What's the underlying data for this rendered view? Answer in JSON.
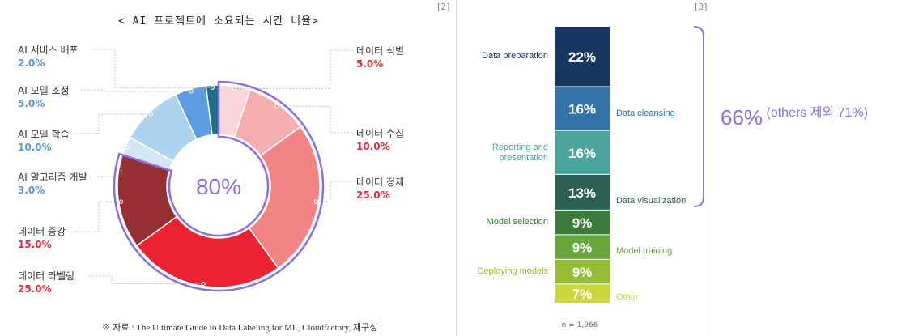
{
  "refs": {
    "left": "[2]",
    "right": "[3]"
  },
  "chart_data": [
    {
      "type": "pie",
      "title": "< AI 프로젝트에 소요되는 시간 비율>",
      "center_label": "80%",
      "slices": [
        {
          "name": "데이터 식별",
          "value": "5.0%",
          "v": 5,
          "color": "#fad5d8",
          "group": "red"
        },
        {
          "name": "데이터 수집",
          "value": "10.0%",
          "v": 10,
          "color": "#f5aeb0",
          "group": "red"
        },
        {
          "name": "데이터 정제",
          "value": "25.0%",
          "v": 25,
          "color": "#f38486",
          "group": "red"
        },
        {
          "name": "데이터 라벨링",
          "value": "25.0%",
          "v": 25,
          "color": "#ea2234",
          "group": "red"
        },
        {
          "name": "데이터 증강",
          "value": "15.0%",
          "v": 15,
          "color": "#952f34",
          "group": "red"
        },
        {
          "name": "AI 알고리즘 개발",
          "value": "3.0%",
          "v": 3,
          "color": "#d3e6f5",
          "group": "blue"
        },
        {
          "name": "AI 모델 학습",
          "value": "10.0%",
          "v": 10,
          "color": "#acd2ee",
          "group": "blue"
        },
        {
          "name": "AI 모델 조정",
          "value": "5.0%",
          "v": 5,
          "color": "#5d9be3",
          "group": "blue"
        },
        {
          "name": "AI 서비스 배포",
          "value": "2.0%",
          "v": 2,
          "color": "#1e6e8e",
          "group": "blue"
        }
      ],
      "highlight": {
        "color": "#8b6ee0",
        "span_percent": 80
      },
      "source": "※ 자료 : The Ultimate Guide to Data Labeling for ML, Cloudfactory, 재구성"
    },
    {
      "type": "bar",
      "stacked": true,
      "orientation": "vertical",
      "series": [
        {
          "name": "Data preparation",
          "value": "22%",
          "v": 22,
          "color": "#18365f",
          "label_side": "left"
        },
        {
          "name": "Data cleansing",
          "value": "16%",
          "v": 16,
          "color": "#3473a8",
          "label_side": "right"
        },
        {
          "name": "Reporting and presentation",
          "value": "16%",
          "v": 16,
          "color": "#4ba39c",
          "label_side": "left"
        },
        {
          "name": "Data visualization",
          "value": "13%",
          "v": 13,
          "color": "#2d5f55",
          "label_side": "right"
        },
        {
          "name": "Model selection",
          "value": "9%",
          "v": 9,
          "color": "#3d7b3c",
          "label_side": "left"
        },
        {
          "name": "Model training",
          "value": "9%",
          "v": 9,
          "color": "#68a63d",
          "label_side": "right"
        },
        {
          "name": "Deploying models",
          "value": "9%",
          "v": 9,
          "color": "#95bd35",
          "label_side": "left"
        },
        {
          "name": "Other",
          "value": "7%",
          "v": 7,
          "color": "#c8d73c",
          "label_side": "right"
        }
      ],
      "n_label": "n = 1,966",
      "bracket_color": "#8b6ee0",
      "summary": {
        "big": "66%",
        "small": "(others 제외 71%)"
      }
    }
  ]
}
